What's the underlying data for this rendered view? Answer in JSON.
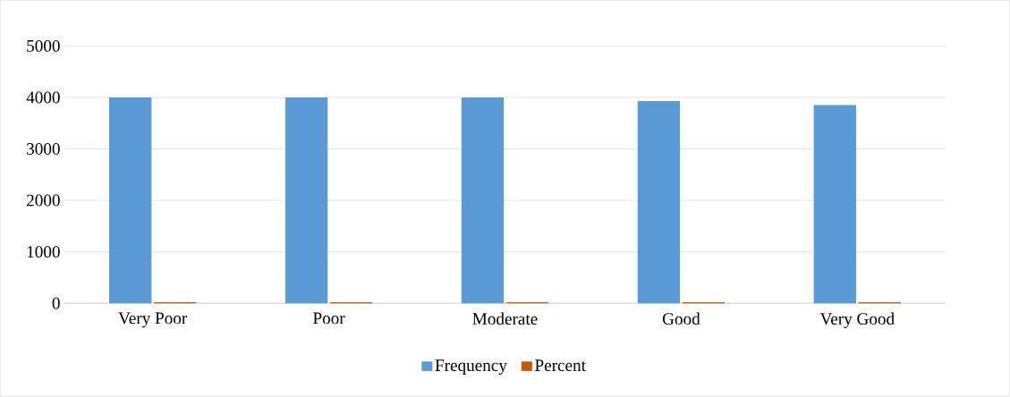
{
  "chart_data": {
    "type": "bar",
    "categories": [
      "Very Poor",
      "Poor",
      "Moderate",
      "Good",
      "Very Good"
    ],
    "series": [
      {
        "name": "Frequency",
        "color": "#5b9bd5",
        "values": [
          4000,
          4000,
          4000,
          3930,
          3850
        ]
      },
      {
        "name": "Percent",
        "color": "#c55a11",
        "values": [
          20,
          20,
          20,
          20,
          20
        ]
      }
    ],
    "ylim": [
      0,
      5000
    ],
    "yticks": [
      0,
      1000,
      2000,
      3000,
      4000,
      5000
    ],
    "grid": "y",
    "legend": "bottom"
  }
}
